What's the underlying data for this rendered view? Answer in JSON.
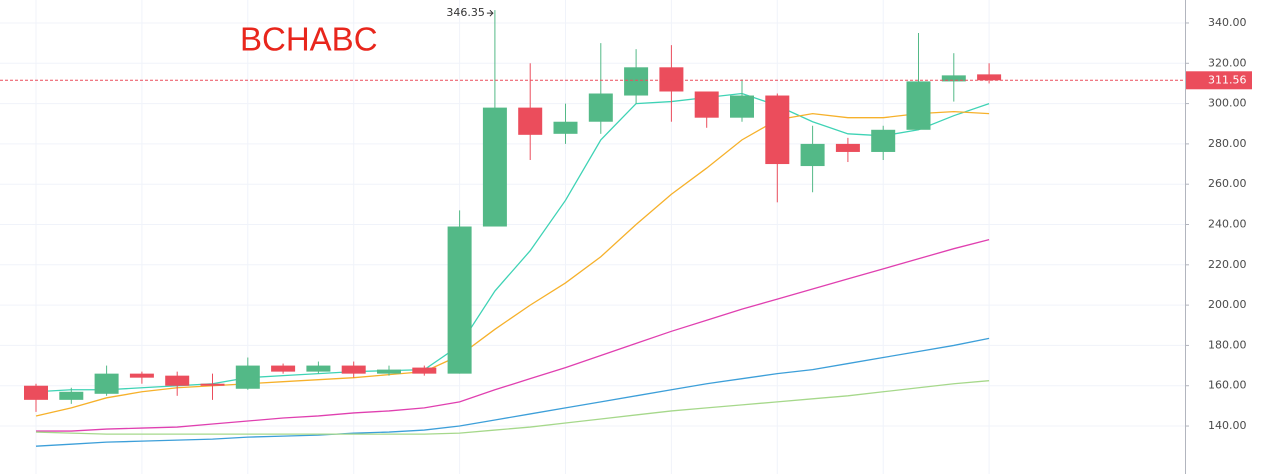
{
  "chart_data": {
    "type": "candlestick",
    "title": "BCHABC",
    "open": [
      160,
      153,
      156,
      166,
      165,
      161,
      158.5,
      170,
      167,
      170,
      166,
      169,
      166,
      239,
      298,
      285,
      291,
      304,
      318,
      306,
      293,
      304,
      269,
      280,
      276,
      287,
      311,
      314.5
    ],
    "high": [
      161,
      159,
      170,
      167,
      167,
      166,
      174,
      171,
      172,
      172,
      170,
      170,
      247,
      346.35,
      320,
      300,
      330,
      327,
      329,
      306,
      312,
      305,
      289,
      283,
      289,
      335,
      325,
      320
    ],
    "low": [
      147,
      151,
      155,
      161,
      155,
      153,
      158,
      166,
      166,
      164,
      165,
      165,
      166,
      239,
      272,
      280,
      285,
      300,
      291,
      288,
      291,
      251,
      256,
      271,
      272,
      287,
      301,
      310
    ],
    "close": [
      153,
      157,
      166,
      164,
      160,
      160,
      170,
      167,
      170,
      166,
      168,
      166,
      239,
      298,
      284.5,
      291,
      305,
      318,
      306,
      293,
      304,
      270,
      280,
      276,
      287,
      311,
      314,
      311.56
    ],
    "up_color": "#53b987",
    "down_color": "#eb4d5c",
    "series": [
      {
        "color": "#3fd3b5",
        "values": [
          157,
          158,
          158,
          159,
          160,
          161,
          164,
          165,
          166,
          167,
          167.5,
          168,
          180,
          207,
          227,
          252,
          282,
          300,
          301,
          303,
          305,
          299,
          291,
          285,
          284,
          287,
          294,
          300
        ]
      },
      {
        "color": "#f6b12b",
        "values": [
          145,
          149,
          154,
          157,
          159,
          160,
          161,
          162,
          163,
          164,
          165.5,
          167,
          175,
          188,
          200,
          211,
          224,
          240,
          255,
          268,
          282,
          292,
          295,
          293,
          293,
          295,
          296,
          295
        ]
      },
      {
        "color": "#e040b0",
        "values": [
          137.5,
          137.5,
          138.5,
          139,
          139.5,
          141,
          142.5,
          144,
          145,
          146.5,
          147.5,
          149,
          152,
          158,
          163.5,
          169,
          175,
          181,
          187,
          192.5,
          198,
          203,
          208,
          213,
          218,
          223,
          228,
          232.5
        ]
      },
      {
        "color": "#3d9fd9",
        "values": [
          130,
          131,
          132,
          132.5,
          133,
          133.5,
          134.5,
          135,
          135.5,
          136.5,
          137,
          138,
          140,
          143,
          146,
          149,
          152,
          155,
          158,
          161,
          163.5,
          166,
          168,
          171,
          174,
          177,
          180,
          183.5
        ]
      },
      {
        "color": "#a6d88b",
        "values": [
          137,
          136.5,
          136,
          136,
          136,
          136,
          136,
          136,
          136,
          136,
          136,
          136,
          136.5,
          138,
          139.5,
          141.5,
          143.5,
          145.5,
          147.5,
          149,
          150.5,
          152,
          153.5,
          155,
          157,
          159,
          161,
          162.5
        ]
      }
    ],
    "last_price": 311.56,
    "ylim": [
      116.2,
      351.4
    ],
    "yticks": [
      {
        "value": 140,
        "label": "140.00"
      },
      {
        "value": 160,
        "label": "160.00"
      },
      {
        "value": 180,
        "label": "180.00"
      },
      {
        "value": 200,
        "label": "200.00"
      },
      {
        "value": 220,
        "label": "220.00"
      },
      {
        "value": 240,
        "label": "240.00"
      },
      {
        "value": 260,
        "label": "260.00"
      },
      {
        "value": 280,
        "label": "280.00"
      },
      {
        "value": 300,
        "label": "300.00"
      },
      {
        "value": 320,
        "label": "320.00"
      },
      {
        "value": 340,
        "label": "340.00"
      }
    ],
    "grid": true
  }
}
